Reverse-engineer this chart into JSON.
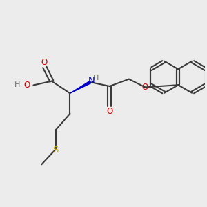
{
  "bg_color": "#ececec",
  "bond_color": "#3a3a3a",
  "bond_width": 1.5,
  "O_color": "#cc0000",
  "N_color": "#0000cc",
  "S_color": "#ccaa00",
  "H_color": "#707070",
  "figsize": [
    3.0,
    3.0
  ],
  "dpi": 100,
  "xlim": [
    0,
    10
  ],
  "ylim": [
    0,
    10
  ]
}
